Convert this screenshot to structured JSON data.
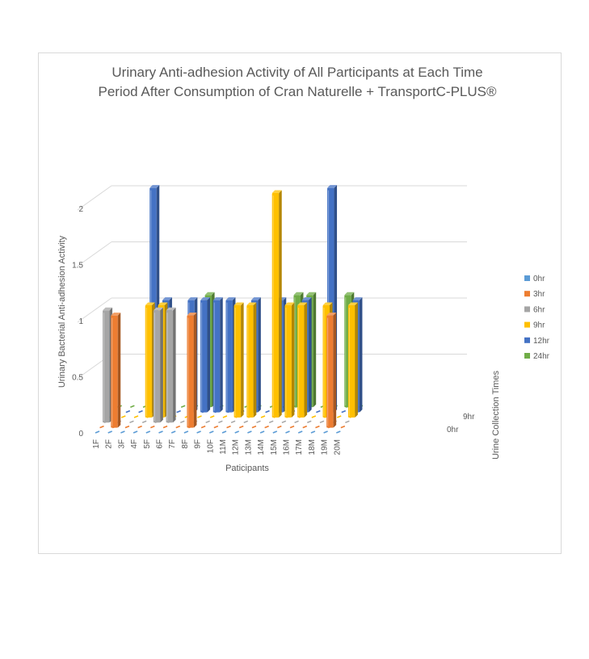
{
  "chart_data": {
    "type": "bar",
    "title": [
      "Urinary Anti-adhesion Activity of All Participants at Each Time",
      "Period After Consumption of Cran Naturelle + TransportC-PLUS®"
    ],
    "xlabel": "Paticipants",
    "ylabel": "Urinary Bacterial Anti-adhesion Activity",
    "zlabel": "Urine Collection Times",
    "z_tick_labels": [
      "0hr",
      "9hr"
    ],
    "ylim": [
      0,
      2
    ],
    "y_ticks": [
      "0",
      "0.5",
      "1",
      "1.5",
      "2"
    ],
    "legend_position": "right",
    "categories": [
      "1F",
      "2F",
      "3F",
      "4F",
      "5F",
      "6F",
      "7F",
      "8F",
      "9F",
      "10F",
      "11M",
      "12M",
      "13M",
      "14M",
      "15M",
      "16M",
      "17M",
      "18M",
      "19M",
      "20M"
    ],
    "series": [
      {
        "name": "0hr",
        "color": "#5b9bd5",
        "values": [
          0,
          0,
          0,
          0,
          0,
          0,
          0,
          0,
          0,
          0,
          0,
          0,
          0,
          0,
          0,
          0,
          0,
          0,
          0,
          0
        ]
      },
      {
        "name": "3hr",
        "color": "#ed7d31",
        "values": [
          0,
          1.0,
          0,
          0,
          0,
          0,
          0,
          1.0,
          0,
          0,
          0,
          0,
          0,
          0,
          0,
          0,
          0,
          0,
          1.0,
          0
        ]
      },
      {
        "name": "6hr",
        "color": "#a5a5a5",
        "values": [
          1.0,
          0,
          0,
          0,
          1.0,
          1.0,
          0,
          0,
          0,
          0,
          0,
          0,
          0,
          0,
          0,
          0,
          0,
          0,
          0,
          0
        ]
      },
      {
        "name": "9hr",
        "color": "#ffc000",
        "values": [
          0,
          0,
          0,
          1.0,
          1.0,
          0,
          0,
          0,
          0,
          0,
          1.0,
          1.0,
          0,
          2.0,
          1.0,
          1.0,
          0,
          1.0,
          0,
          1.0
        ]
      },
      {
        "name": "12hr",
        "color": "#4472c4",
        "values": [
          0,
          0,
          0,
          2.0,
          1.0,
          0,
          1.0,
          1.0,
          1.0,
          1.0,
          0,
          1.0,
          0,
          1.0,
          0,
          1.0,
          0,
          2.0,
          0,
          1.0
        ]
      },
      {
        "name": "24hr",
        "color": "#70ad47",
        "values": [
          0,
          0,
          0,
          0,
          0,
          0,
          0,
          1.0,
          0,
          0,
          0,
          0,
          0,
          0,
          1.0,
          1.0,
          0,
          0,
          1.0,
          0
        ]
      }
    ]
  }
}
